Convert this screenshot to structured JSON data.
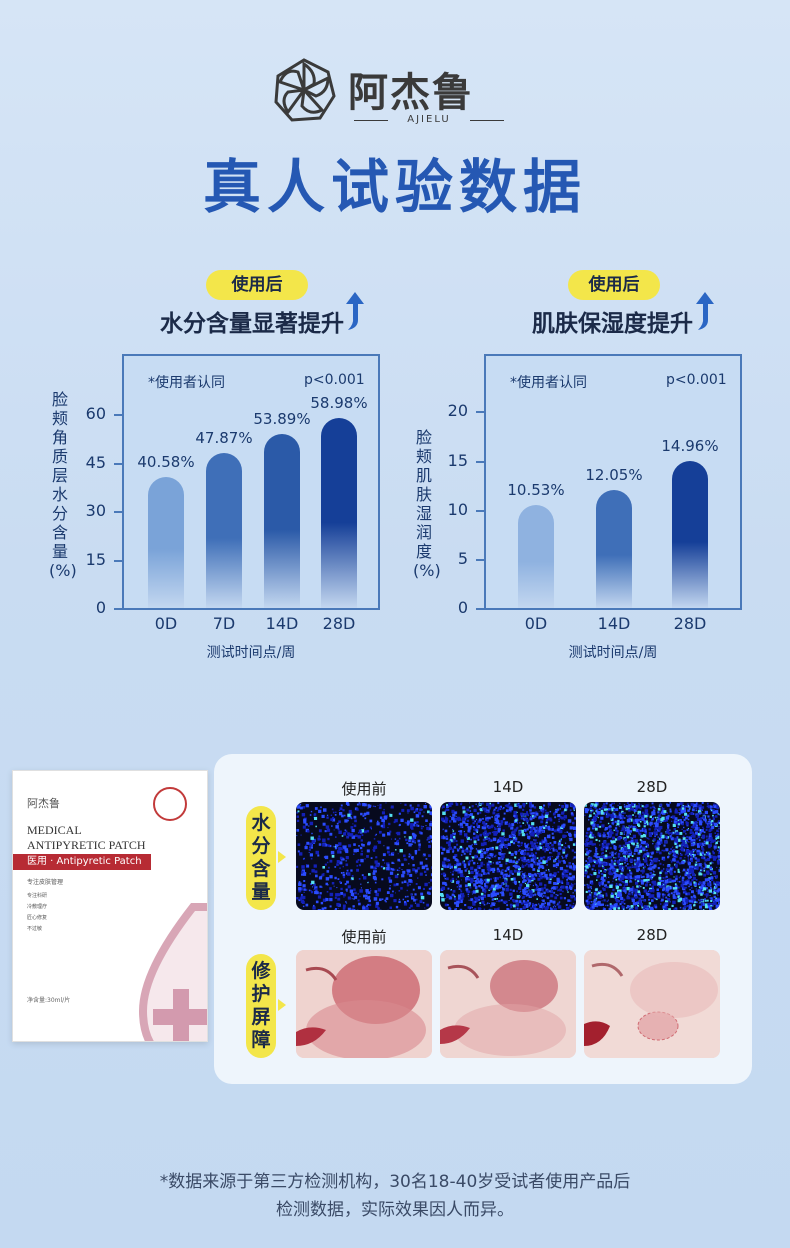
{
  "brand": {
    "name_cn": "阿杰鲁",
    "name_en": "AJIELU"
  },
  "main_title": "真人试验数据",
  "charts": [
    {
      "pill": "使用后",
      "subtitle": "水分含量显著提升",
      "note": "*使用者认同",
      "pvalue": "p<0.001",
      "ylabel": [
        "脸",
        "颊",
        "角",
        "质",
        "层",
        "水",
        "分",
        "含",
        "量",
        "(%)"
      ],
      "xlabel": "测试时间点/周"
    },
    {
      "pill": "使用后",
      "subtitle": "肌肤保湿度提升",
      "note": "*使用者认同",
      "pvalue": "p<0.001",
      "ylabel": [
        "脸",
        "颊",
        "肌",
        "肤",
        "湿",
        "润",
        "度",
        "(%)"
      ],
      "xlabel": "测试时间点/周"
    }
  ],
  "chart_data": [
    {
      "type": "bar",
      "categories": [
        "0D",
        "7D",
        "14D",
        "28D"
      ],
      "values": [
        40.58,
        47.87,
        53.89,
        58.98
      ],
      "labels": [
        "40.58%",
        "47.87%",
        "53.89%",
        "58.98%"
      ],
      "yticks": [
        "60",
        "45",
        "30",
        "15",
        "0"
      ],
      "ylim": [
        0,
        70
      ],
      "xlabel": "测试时间点/周",
      "ylabel": "脸颊角质层水分含量(%)",
      "colors": [
        "#7aa3d8",
        "#3f6fb8",
        "#2b5aa8",
        "#153f98"
      ]
    },
    {
      "type": "bar",
      "categories": [
        "0D",
        "14D",
        "28D"
      ],
      "values": [
        10.53,
        12.05,
        14.96
      ],
      "labels": [
        "10.53%",
        "12.05%",
        "14.96%"
      ],
      "yticks": [
        "20",
        "15",
        "10",
        "5",
        "0"
      ],
      "ylim": [
        0,
        23
      ],
      "xlabel": "测试时间点/周",
      "ylabel": "脸颊肌肤湿润度(%)",
      "colors": [
        "#8fb2e0",
        "#3f6fb8",
        "#153f98"
      ]
    }
  ],
  "product": {
    "logo": "阿杰鲁",
    "title_line1": "MEDICAL",
    "title_line2": "ANTIPYRETIC PATCH",
    "band": "医用 · Antipyretic Patch",
    "tagline": "专注皮肤管理",
    "features": [
      "专注科研",
      "冷敷理疗",
      "匠心修复",
      "不过敏"
    ],
    "net": "净含量:30ml/片"
  },
  "results": {
    "row1": {
      "tag": "水分含量",
      "heads": [
        "使用前",
        "14D",
        "28D"
      ]
    },
    "row2": {
      "tag": "修护屏障",
      "heads": [
        "使用前",
        "14D",
        "28D"
      ]
    }
  },
  "footnote": {
    "line1": "*数据来源于第三方检测机构，30名18-40岁受试者使用产品后",
    "line2": "检测数据，实际效果因人而异。"
  },
  "colors": {
    "title": "#2558b3",
    "pill": "#f3e64a",
    "panel_border": "#4a79b9"
  }
}
